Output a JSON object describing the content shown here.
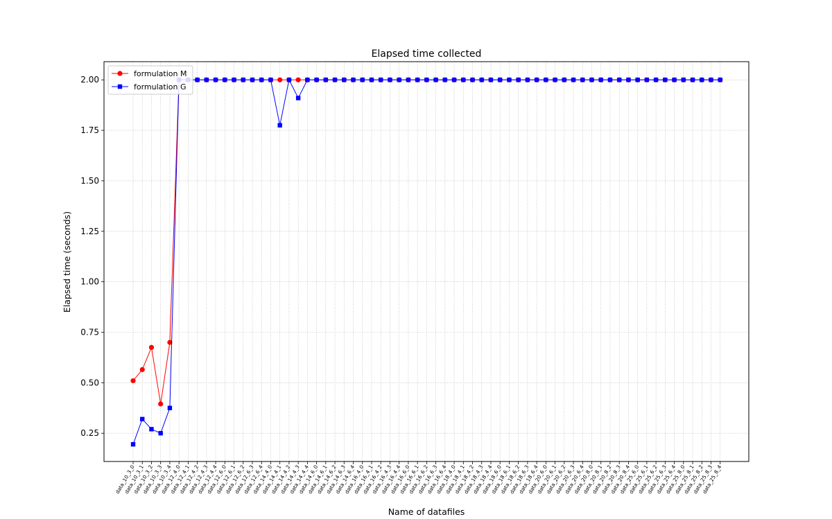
{
  "chart_data": {
    "type": "line",
    "title": "Elapsed time collected",
    "xlabel": "Name of datafiles",
    "ylabel": "Elapsed time (seconds)",
    "ylim": [
      0.11,
      2.09
    ],
    "yticks": [
      "0.25",
      "0.50",
      "0.75",
      "1.00",
      "1.25",
      "1.50",
      "1.75",
      "2.00"
    ],
    "grid": true,
    "legend_position": "top-left",
    "categories": [
      "data_10_3_0",
      "data_10_3_1",
      "data_10_3_2",
      "data_10_3_3",
      "data_10_3_4",
      "data_12_4_0",
      "data_12_4_1",
      "data_12_4_2",
      "data_12_4_3",
      "data_12_4_4",
      "data_12_6_0",
      "data_12_6_1",
      "data_12_6_2",
      "data_12_6_3",
      "data_12_6_4",
      "data_14_4_0",
      "data_14_4_1",
      "data_14_4_2",
      "data_14_4_3",
      "data_14_4_4",
      "data_14_6_0",
      "data_14_6_1",
      "data_14_6_2",
      "data_14_6_3",
      "data_14_6_4",
      "data_16_4_0",
      "data_16_4_1",
      "data_16_4_2",
      "data_16_4_3",
      "data_16_4_4",
      "data_16_6_0",
      "data_16_6_1",
      "data_16_6_2",
      "data_16_6_3",
      "data_16_6_4",
      "data_18_4_0",
      "data_18_4_1",
      "data_18_4_2",
      "data_18_4_3",
      "data_18_4_4",
      "data_18_6_0",
      "data_18_6_1",
      "data_18_6_2",
      "data_18_6_3",
      "data_18_6_4",
      "data_20_6_0",
      "data_20_6_1",
      "data_20_6_2",
      "data_20_6_3",
      "data_20_6_4",
      "data_20_8_0",
      "data_20_8_1",
      "data_20_8_2",
      "data_20_8_3",
      "data_20_8_4",
      "data_25_6_0",
      "data_25_6_1",
      "data_25_6_2",
      "data_25_6_3",
      "data_25_6_4",
      "data_25_8_0",
      "data_25_8_1",
      "data_25_8_2",
      "data_25_8_3",
      "data_25_8_4"
    ],
    "series": [
      {
        "name": "formulation M",
        "color": "#ff0000",
        "marker": "circle",
        "values": [
          0.51,
          0.565,
          0.675,
          0.395,
          0.7,
          2.0,
          2.0,
          2.0,
          2.0,
          2.0,
          2.0,
          2.0,
          2.0,
          2.0,
          2.0,
          2.0,
          2.0,
          2.0,
          2.0,
          2.0,
          2.0,
          2.0,
          2.0,
          2.0,
          2.0,
          2.0,
          2.0,
          2.0,
          2.0,
          2.0,
          2.0,
          2.0,
          2.0,
          2.0,
          2.0,
          2.0,
          2.0,
          2.0,
          2.0,
          2.0,
          2.0,
          2.0,
          2.0,
          2.0,
          2.0,
          2.0,
          2.0,
          2.0,
          2.0,
          2.0,
          2.0,
          2.0,
          2.0,
          2.0,
          2.0,
          2.0,
          2.0,
          2.0,
          2.0,
          2.0,
          2.0,
          2.0,
          2.0,
          2.0,
          2.0
        ]
      },
      {
        "name": "formulation G",
        "color": "#0000ff",
        "marker": "square",
        "values": [
          0.195,
          0.32,
          0.27,
          0.25,
          0.375,
          2.0,
          2.0,
          2.0,
          2.0,
          2.0,
          2.0,
          2.0,
          2.0,
          2.0,
          2.0,
          2.0,
          1.775,
          2.0,
          1.91,
          2.0,
          2.0,
          2.0,
          2.0,
          2.0,
          2.0,
          2.0,
          2.0,
          2.0,
          2.0,
          2.0,
          2.0,
          2.0,
          2.0,
          2.0,
          2.0,
          2.0,
          2.0,
          2.0,
          2.0,
          2.0,
          2.0,
          2.0,
          2.0,
          2.0,
          2.0,
          2.0,
          2.0,
          2.0,
          2.0,
          2.0,
          2.0,
          2.0,
          2.0,
          2.0,
          2.0,
          2.0,
          2.0,
          2.0,
          2.0,
          2.0,
          2.0,
          2.0,
          2.0,
          2.0,
          2.0
        ]
      }
    ]
  }
}
